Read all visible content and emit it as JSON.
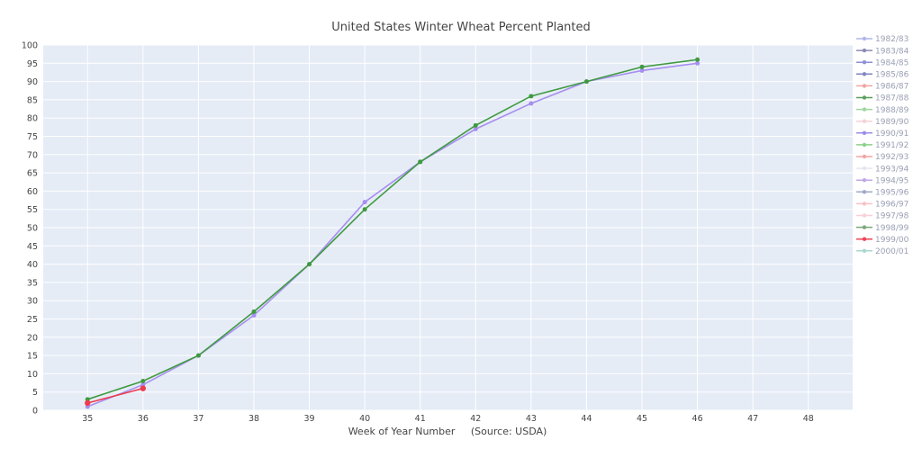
{
  "chart_data": {
    "type": "line",
    "title": "United States Winter Wheat Percent Planted",
    "xlabel": "Week of Year Number     (Source: USDA)",
    "ylabel": "",
    "xlim": [
      34.2,
      48.8
    ],
    "ylim": [
      0,
      100
    ],
    "x_ticks": [
      35,
      36,
      37,
      38,
      39,
      40,
      41,
      42,
      43,
      44,
      45,
      46,
      47,
      48
    ],
    "y_ticks": [
      0,
      5,
      10,
      15,
      20,
      25,
      30,
      35,
      40,
      45,
      50,
      55,
      60,
      65,
      70,
      75,
      80,
      85,
      90,
      95,
      100
    ],
    "grid": true,
    "legend_position": "right",
    "plot_background": "#e5ecf6",
    "series": [
      {
        "name": "1982/83",
        "color": "#b1b6ec",
        "x": [],
        "y": []
      },
      {
        "name": "1983/84",
        "color": "#8a8ab6",
        "x": [],
        "y": []
      },
      {
        "name": "1984/85",
        "color": "#8c92d4",
        "x": [],
        "y": []
      },
      {
        "name": "1985/86",
        "color": "#7f86bf",
        "x": [],
        "y": []
      },
      {
        "name": "1986/87",
        "color": "#f0a4a0",
        "x": [],
        "y": []
      },
      {
        "name": "1987/88",
        "color": "#58a05a",
        "x": [],
        "y": []
      },
      {
        "name": "1988/89",
        "color": "#9fd69f",
        "x": [],
        "y": []
      },
      {
        "name": "1989/90",
        "color": "#f3d2d8",
        "x": [],
        "y": []
      },
      {
        "name": "1990/91",
        "color": "#9c8de8",
        "x": [],
        "y": []
      },
      {
        "name": "1991/92",
        "color": "#8cd08c",
        "x": [],
        "y": []
      },
      {
        "name": "1992/93",
        "color": "#f5a3a3",
        "x": [],
        "y": []
      },
      {
        "name": "1993/94",
        "color": "#e6e6f0",
        "x": [],
        "y": []
      },
      {
        "name": "1994/95",
        "color": "#c0a8e6",
        "x": [],
        "y": []
      },
      {
        "name": "1995/96",
        "color": "#a0a8c8",
        "x": [],
        "y": []
      },
      {
        "name": "1996/97",
        "color": "#f8c0c8",
        "x": [],
        "y": []
      },
      {
        "name": "1997/98",
        "color": "#f8d0d8",
        "x": [],
        "y": []
      },
      {
        "name": "1998/99",
        "color": "#7aa87a",
        "x": [],
        "y": []
      },
      {
        "name": "1999/00",
        "color": "#ee4455",
        "x": [
          35,
          36
        ],
        "y": [
          2,
          6
        ]
      },
      {
        "name": "2000/01",
        "color": "#a8d8d0",
        "x": [],
        "y": []
      }
    ],
    "plotted_lines": [
      {
        "ref": "1990/91",
        "color": "#a78ef0",
        "marker": 2.5,
        "x": [
          35,
          36,
          37,
          38,
          39,
          40,
          41,
          42,
          43,
          44,
          45,
          46
        ],
        "y": [
          1,
          7,
          15,
          26,
          40,
          57,
          68,
          77,
          84,
          90,
          93,
          95
        ]
      },
      {
        "ref": "1987/88",
        "color": "#3f9a3f",
        "marker": 2.5,
        "x": [
          35,
          36,
          37,
          38,
          39,
          40,
          41,
          42,
          43,
          44,
          45,
          46
        ],
        "y": [
          3,
          8,
          15,
          27,
          40,
          55,
          68,
          78,
          86,
          90,
          94,
          96
        ]
      },
      {
        "ref": "1999/00",
        "color": "#ee3b4e",
        "marker": 3.2,
        "x": [
          35,
          36
        ],
        "y": [
          2,
          6
        ]
      }
    ]
  }
}
